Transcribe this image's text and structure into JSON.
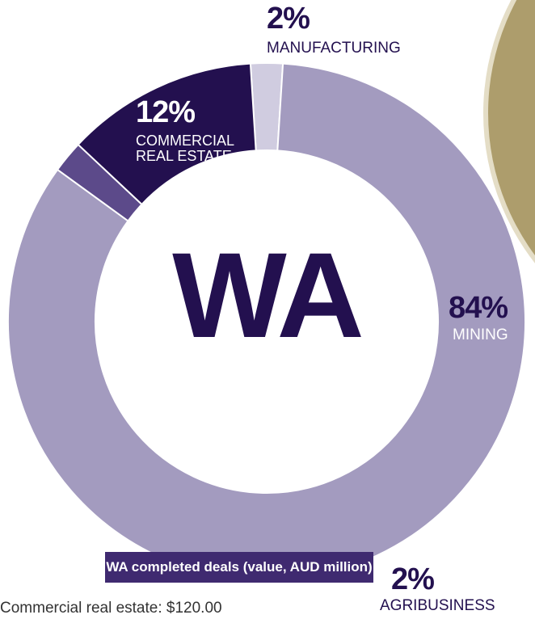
{
  "chart_data": {
    "type": "pie",
    "donut": true,
    "center_label": "WA",
    "categories": [
      "MANUFACTURING",
      "MINING",
      "AGRIBUSINESS",
      "COMMERCIAL REAL ESTATE"
    ],
    "values": [
      2,
      84,
      2,
      12
    ],
    "value_labels": [
      "2%",
      "84%",
      "2%",
      "12%"
    ],
    "colors": [
      "#d0cce0",
      "#a39bbf",
      "#5c4a8a",
      "#23104f"
    ],
    "caption": "WA completed deals (value, AUD million)",
    "note": "Commercial real estate: $120.00"
  }
}
